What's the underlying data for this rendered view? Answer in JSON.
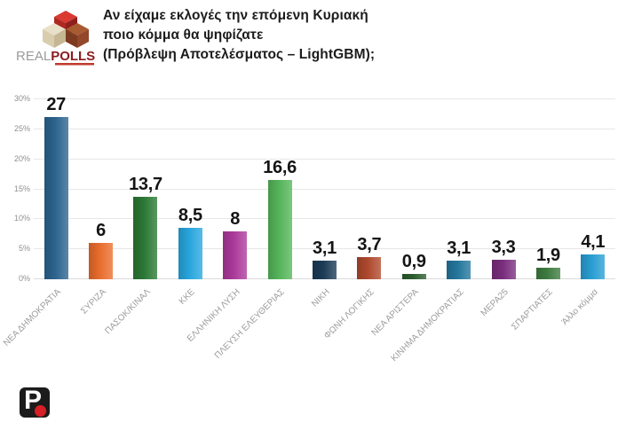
{
  "header": {
    "brand": {
      "light": "REAL",
      "bold": "POLLS"
    },
    "title_lines": [
      "Αν είχαμε εκλογές την επόμενη Κυριακή",
      "ποιο κόμμα θα ψηφίζατε",
      "(Πρόβλεψη Αποτελέσματος – LightGBM);"
    ]
  },
  "chart_data": {
    "type": "bar",
    "title": "Αν είχαμε εκλογές την επόμενη Κυριακή ποιο κόμμα θα ψηφίζατε (Πρόβλεψη Αποτελέσματος – LightGBM);",
    "categories": [
      "ΝΕΑ ΔΗΜΟΚΡΑΤΙΑ",
      "ΣΥΡΙΖΑ",
      "ΠΑΣΟΚ/ΚΙΝΑΛ",
      "ΚΚΕ",
      "ΕΛΛΗΝΙΚΗ ΛΥΣΗ",
      "ΠΛΕΥΣΗ ΕΛΕΥΘΕΡΙΑΣ",
      "ΝΙΚΗ",
      "ΦΩΝΗ ΛΟΓΙΚΗΣ",
      "ΝΕΑ ΑΡΙΣΤΕΡΑ",
      "ΚΙΝΗΜΑ ΔΗΜΟΚΡΑΤΙΑΣ",
      "ΜΕΡΑ25",
      "ΣΠΑΡΤΙΑΤΕΣ",
      "Άλλο κόμμα"
    ],
    "values": [
      27,
      6,
      13.7,
      8.5,
      8,
      16.6,
      3.1,
      3.7,
      0.9,
      3.1,
      3.3,
      1.9,
      4.1
    ],
    "value_labels": [
      "27",
      "6",
      "13,7",
      "8,5",
      "8",
      "16,6",
      "3,1",
      "3,7",
      "0,9",
      "3,1",
      "3,3",
      "1,9",
      "4,1"
    ],
    "bar_colors": [
      "#2d6590",
      "#ec6f2d",
      "#2c7a35",
      "#29a8e0",
      "#ae3a9d",
      "#57b75c",
      "#1c3c58",
      "#b04a2e",
      "#2c5f2d",
      "#24789f",
      "#7c2e80",
      "#3f7d41",
      "#2aa0d5"
    ],
    "y_ticks": [
      "0%",
      "5%",
      "10%",
      "15%",
      "20%",
      "25%",
      "30%"
    ],
    "ylim": [
      0,
      30
    ],
    "grid": true,
    "legend": "none",
    "decimal_separator": ",",
    "xlabel": "",
    "ylabel": ""
  },
  "footer": {
    "logo_letter": "P"
  }
}
